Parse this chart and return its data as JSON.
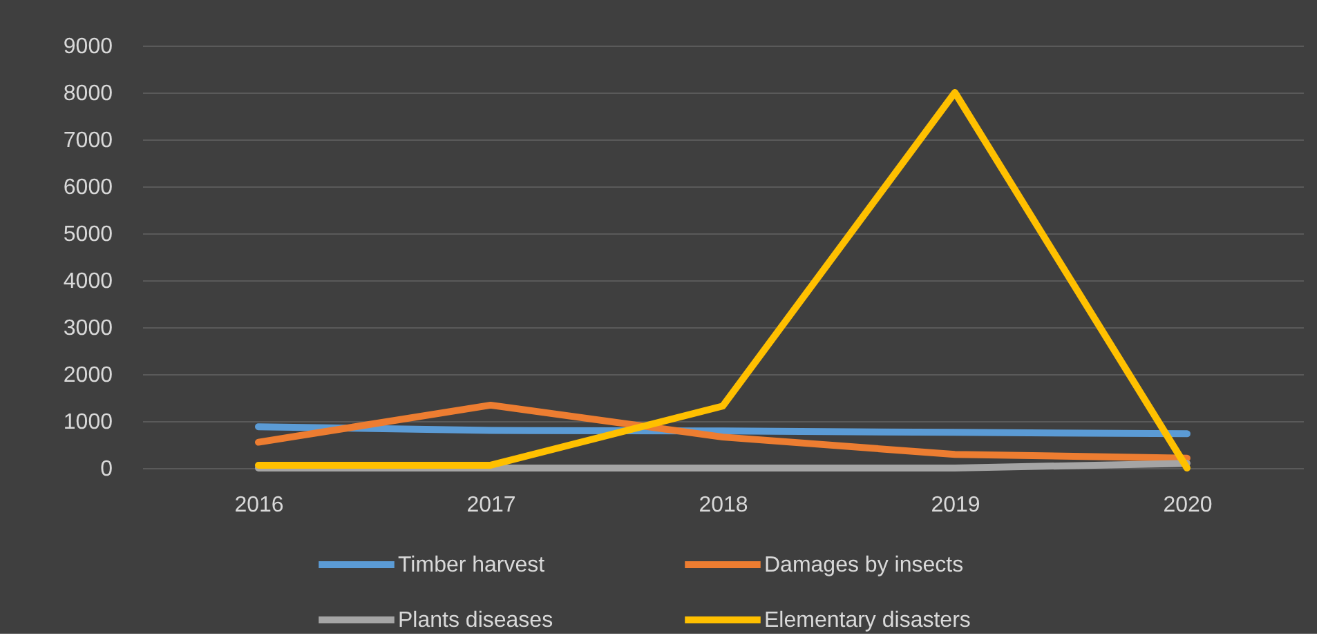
{
  "chart_data": {
    "type": "line",
    "categories": [
      "2016",
      "2017",
      "2018",
      "2019",
      "2020"
    ],
    "series": [
      {
        "name": "Timber harvest",
        "color": "#5b9bd5",
        "values": [
          880,
          800,
          790,
          760,
          730
        ]
      },
      {
        "name": "Damages by insects",
        "color": "#ed7d31",
        "values": [
          550,
          1340,
          660,
          290,
          210
        ]
      },
      {
        "name": "Plants diseases",
        "color": "#a5a5a5",
        "values": [
          0,
          0,
          0,
          0,
          100
        ]
      },
      {
        "name": "Elementary disasters",
        "color": "#ffc000",
        "values": [
          60,
          60,
          1320,
          8000,
          0
        ]
      }
    ],
    "ylim": [
      0,
      9000
    ],
    "yticks": [
      0,
      1000,
      2000,
      3000,
      4000,
      5000,
      6000,
      7000,
      8000,
      9000
    ],
    "grid": "y",
    "legend": "bottom",
    "marker": "none",
    "line_style": "solid"
  }
}
